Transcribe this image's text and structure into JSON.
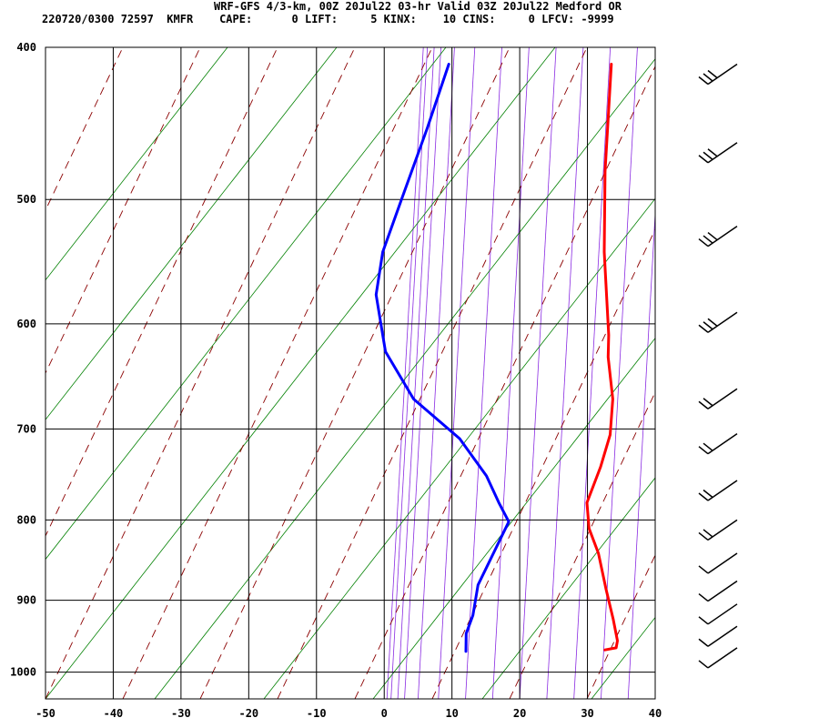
{
  "header": {
    "line1": "WRF-GFS 4/3-km, 00Z 20Jul22 03-hr Valid 03Z 20Jul22 Medford OR",
    "line2": "220720/0300 72597  KMFR    CAPE:      0 LIFT:     5 KINX:    10 CINS:     0 LFCV: -9999"
  },
  "colors": {
    "temperature": "#ff0000",
    "dewpoint": "#0000ff",
    "dry_adiabat": "#8b0000",
    "moist_adiabat": "#008000",
    "mixing_ratio": "#8a2be2",
    "grid": "#000000",
    "wind_barb": "#000000"
  },
  "chart_data": {
    "type": "line",
    "chart_kind": "skew-T log-P sounding",
    "x_axis_units": "temperature (°C)",
    "y_axis_units": "pressure (hPa)",
    "y_scale": "log",
    "x_range": [
      -50,
      40
    ],
    "y_range": [
      1040,
      400
    ],
    "x_ticks": [
      -50,
      -40,
      -30,
      -20,
      -10,
      0,
      10,
      20,
      30,
      40
    ],
    "y_ticks": [
      400,
      500,
      600,
      700,
      800,
      900,
      1000
    ],
    "grid": true,
    "series": [
      {
        "role": "temperature",
        "points": [
          [
            -18.0,
            410
          ],
          [
            -10.2,
            480
          ],
          [
            -3.8,
            540
          ],
          [
            3.6,
            610
          ],
          [
            5.3,
            630
          ],
          [
            9.4,
            670
          ],
          [
            11.9,
            706
          ],
          [
            13.1,
            740
          ],
          [
            14.0,
            780
          ],
          [
            16.4,
            810
          ],
          [
            19.8,
            840
          ],
          [
            23.8,
            885
          ],
          [
            27.3,
            925
          ],
          [
            29.7,
            955
          ],
          [
            30.1,
            965
          ],
          [
            28.6,
            968
          ]
        ]
      },
      {
        "role": "dewpoint",
        "points": [
          [
            -42.0,
            410
          ],
          [
            -40.0,
            450
          ],
          [
            -38.0,
            500
          ],
          [
            -36.5,
            540
          ],
          [
            -34.0,
            575
          ],
          [
            -28.0,
            625
          ],
          [
            -20.0,
            670
          ],
          [
            -10.0,
            710
          ],
          [
            -3.0,
            750
          ],
          [
            1.0,
            780
          ],
          [
            4.0,
            802
          ],
          [
            4.6,
            880
          ],
          [
            6.3,
            920
          ],
          [
            6.8,
            945
          ],
          [
            8.2,
            970
          ]
        ]
      }
    ],
    "wind_profile_levels_hPa": [
      410,
      460,
      520,
      590,
      660,
      705,
      755,
      800,
      840,
      875,
      905,
      935,
      965
    ]
  }
}
